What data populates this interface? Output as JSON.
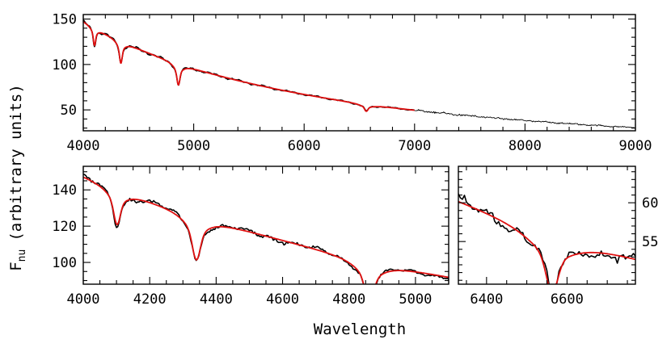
{
  "chart_data": [
    {
      "id": "full",
      "type": "line",
      "xlim": [
        4000,
        9000
      ],
      "ylim": [
        27,
        155
      ],
      "xticks": [
        4000,
        5000,
        6000,
        7000,
        8000,
        9000
      ],
      "yticks": [
        50,
        100,
        150
      ],
      "series": [
        {
          "role": "observed",
          "color": "#000000",
          "x_range": [
            4000,
            9000
          ]
        },
        {
          "role": "model",
          "color": "#e01010",
          "x_range": [
            4000,
            7000
          ]
        }
      ]
    },
    {
      "id": "blue-zoom",
      "type": "line",
      "xlim": [
        4000,
        5100
      ],
      "ylim": [
        88,
        153
      ],
      "xticks": [
        4000,
        4200,
        4400,
        4600,
        4800,
        5000
      ],
      "yticks": [
        100,
        120,
        140
      ],
      "series": [
        {
          "role": "observed",
          "color": "#000000"
        },
        {
          "role": "model",
          "color": "#e01010"
        }
      ]
    },
    {
      "id": "halpha-zoom",
      "type": "line",
      "xlim": [
        6330,
        6770
      ],
      "ylim": [
        49.5,
        64.7
      ],
      "xticks": [
        6400,
        6600
      ],
      "yticks": [
        55,
        60
      ],
      "y_axis_side": "right",
      "series": [
        {
          "role": "observed",
          "color": "#000000"
        },
        {
          "role": "model",
          "color": "#e01010"
        }
      ]
    }
  ],
  "labels": {
    "ylabel_main": "F",
    "ylabel_sub": "nu",
    "ylabel_rest": "(arbitrary units)",
    "xlabel": "Wavelength"
  },
  "colors": {
    "observed": "#000000",
    "model": "#e01010"
  }
}
